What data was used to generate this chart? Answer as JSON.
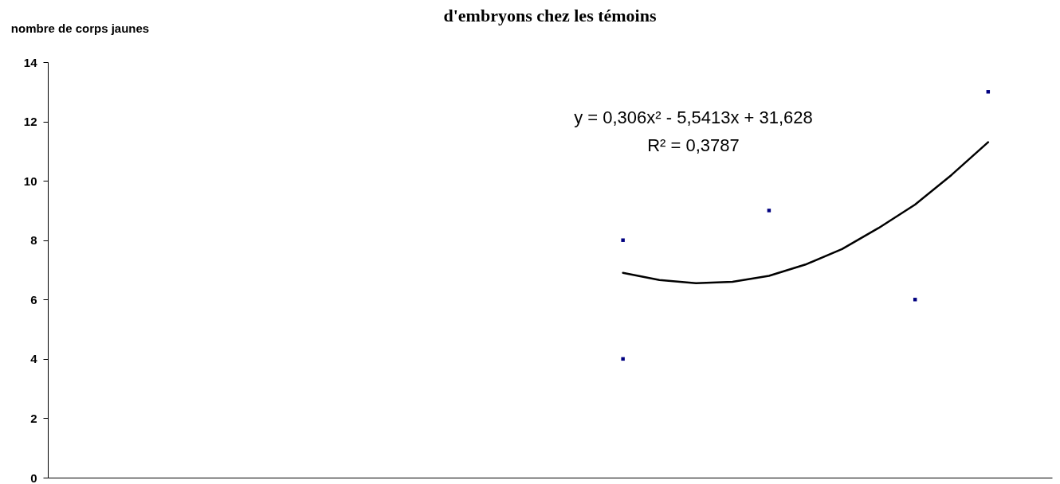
{
  "chart_data": {
    "type": "scatter",
    "title": "d'embryons chez les témoins",
    "ylabel": "nombre de corps jaunes",
    "categories": [
      null,
      null,
      null,
      null,
      null,
      null,
      null,
      null,
      null,
      null,
      null,
      null,
      null,
      null,
      null,
      null,
      null,
      null,
      null,
      null,
      null,
      null,
      null,
      null,
      null,
      null,
      null,
      null,
      null,
      null,
      null,
      null,
      null,
      null,
      null,
      null,
      null,
      null,
      null,
      null,
      null,
      null,
      null,
      null,
      null,
      null,
      null,
      null,
      null,
      null,
      null,
      null,
      null,
      null,
      null
    ],
    "series": [
      {
        "color": "#000080",
        "marker": "square",
        "values": [
          null,
          null,
          null,
          null,
          null,
          null,
          null,
          null,
          null,
          null,
          null,
          null,
          null,
          null,
          null,
          null,
          null,
          null,
          null,
          null,
          null,
          null,
          null,
          null,
          null,
          null,
          null,
          null,
          null,
          null,
          null,
          8,
          null,
          null,
          null,
          null,
          null,
          null,
          null,
          9,
          null,
          null,
          null,
          null,
          null,
          null,
          null,
          6,
          null,
          null,
          null,
          13,
          null,
          null,
          null
        ]
      },
      {
        "color": "#000080",
        "marker": "square",
        "values": [
          null,
          null,
          null,
          null,
          null,
          null,
          null,
          null,
          null,
          null,
          null,
          null,
          null,
          null,
          null,
          null,
          null,
          null,
          null,
          null,
          null,
          null,
          null,
          null,
          null,
          null,
          null,
          null,
          null,
          null,
          null,
          4,
          null,
          null,
          null,
          null,
          null,
          null,
          null,
          null,
          null,
          null,
          null,
          null,
          null,
          null,
          null,
          null,
          null,
          null,
          null,
          null,
          null,
          null,
          null
        ]
      },
      {
        "type": "line",
        "color": "#000000",
        "values": [
          null,
          null,
          null,
          null,
          null,
          null,
          null,
          null,
          null,
          null,
          null,
          null,
          null,
          null,
          null,
          null,
          null,
          null,
          null,
          null,
          null,
          null,
          null,
          null,
          null,
          null,
          null,
          null,
          null,
          null,
          null,
          6.9,
          null,
          6.66,
          null,
          6.55,
          null,
          6.6,
          null,
          6.8,
          null,
          7.18,
          null,
          7.7,
          null,
          8.41,
          null,
          9.2,
          null,
          10.2,
          null,
          11.3,
          null,
          null,
          null
        ]
      }
    ],
    "annotations": [
      "y = 0,306x² - 5,5413x + 31,628",
      "R² = 0,3787"
    ],
    "ylim": [
      0,
      14
    ],
    "yticks": [
      0,
      2,
      4,
      6,
      8,
      10,
      12,
      14
    ],
    "tick_labels": "y",
    "grid": false
  }
}
